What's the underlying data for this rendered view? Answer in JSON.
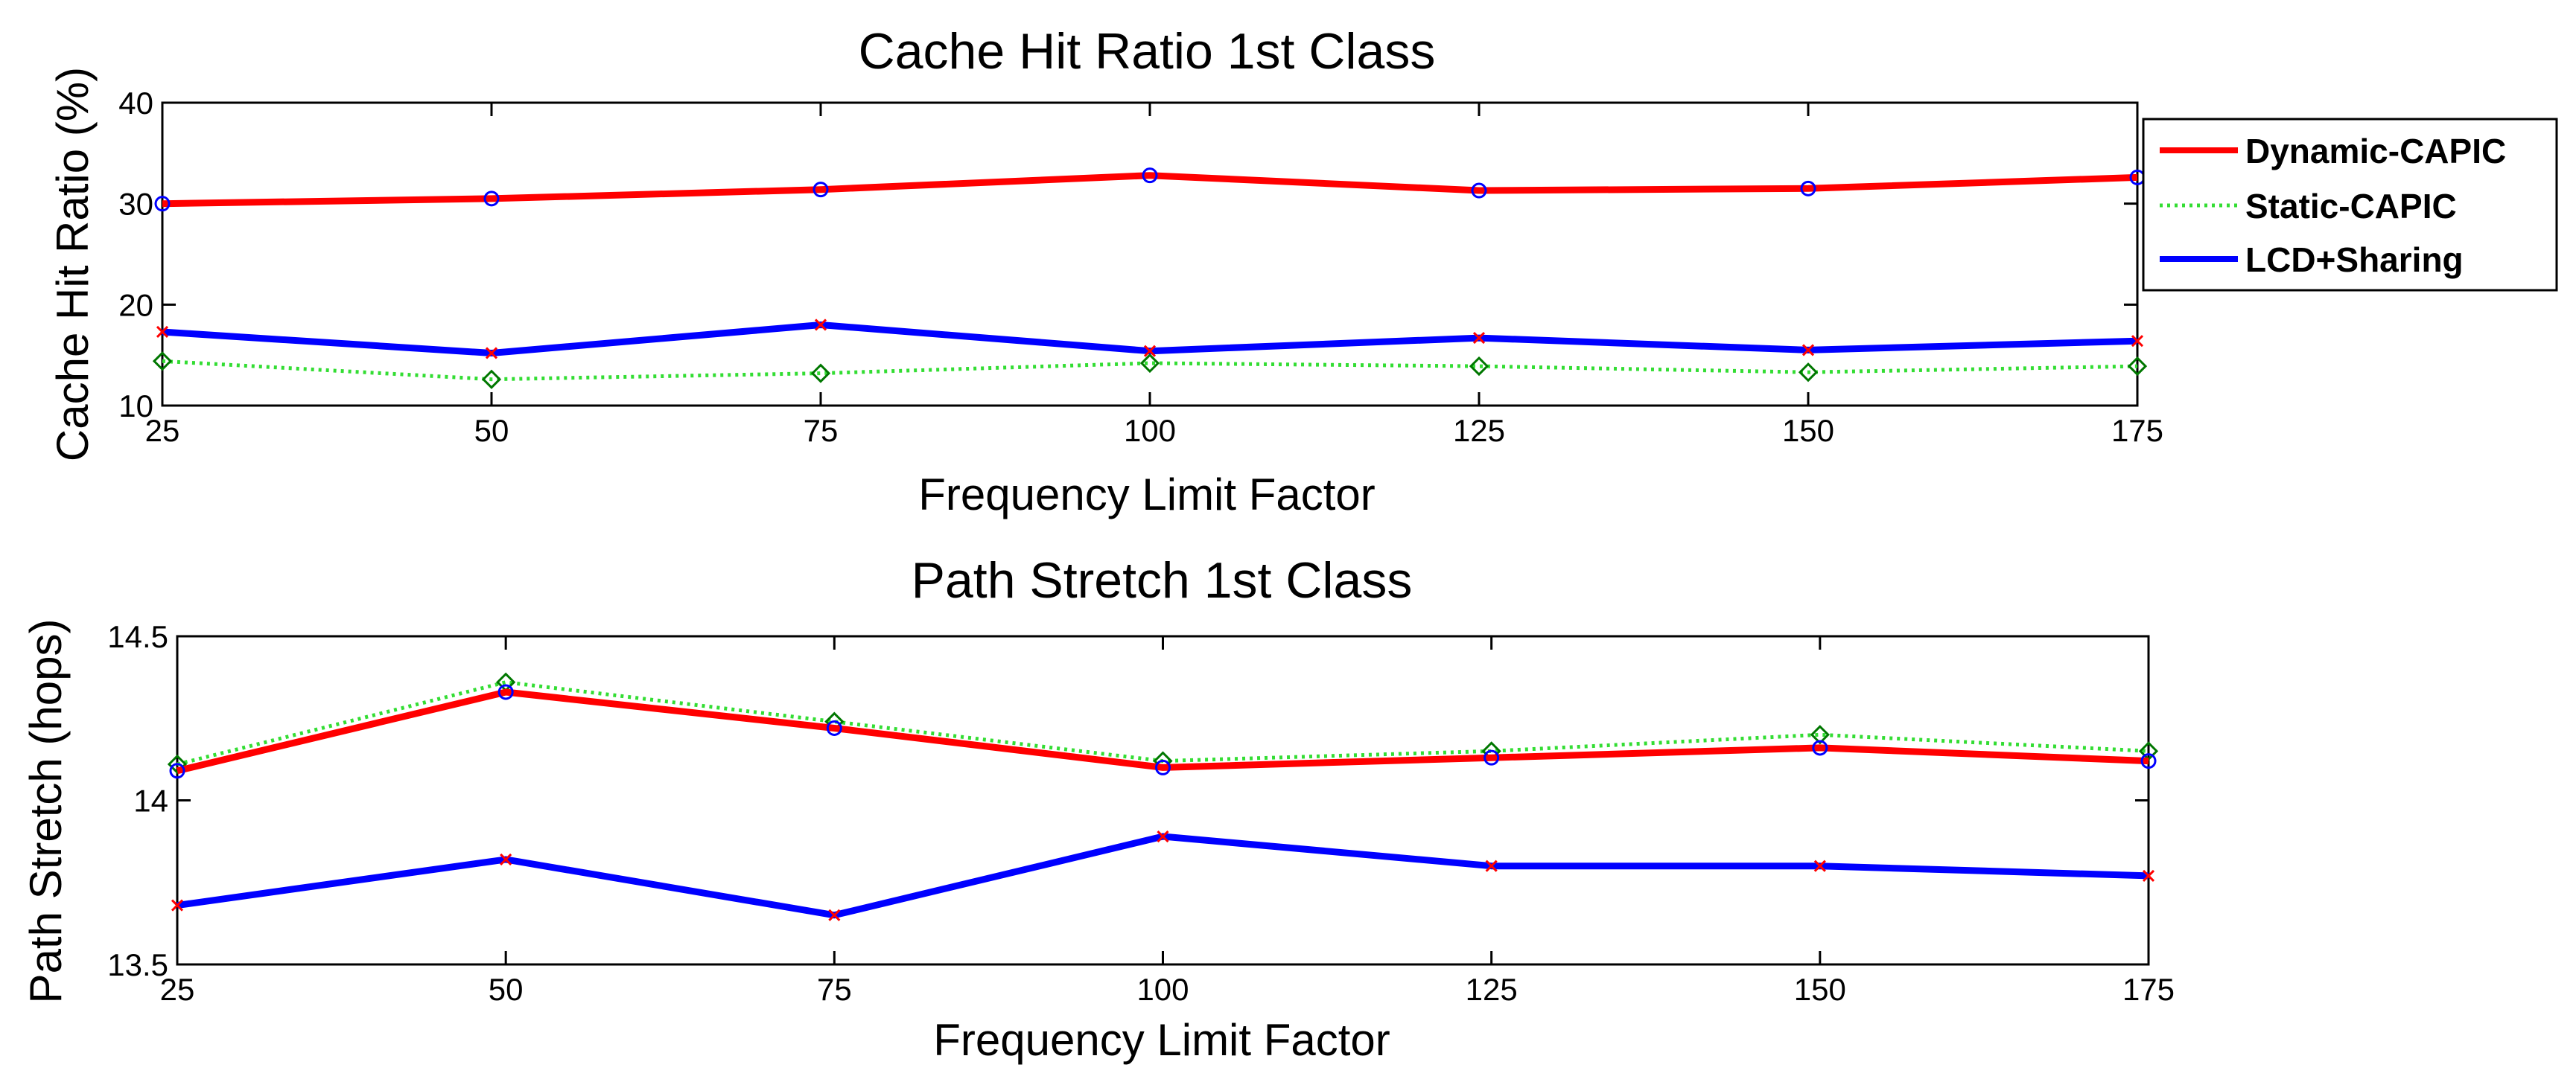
{
  "chart_data": [
    {
      "type": "line",
      "title": "Cache Hit Ratio 1st Class",
      "xlabel": "Frequency Limit Factor",
      "ylabel": "Cache Hit Ratio (%)",
      "x": [
        25,
        50,
        75,
        100,
        125,
        150,
        175
      ],
      "x_ticks": [
        25,
        50,
        75,
        100,
        125,
        150,
        175
      ],
      "xlim": [
        25,
        175
      ],
      "y_ticks": [
        10,
        20,
        30,
        40
      ],
      "ylim": [
        10,
        40
      ],
      "grid": false,
      "legend_position": "outside-right",
      "series": [
        {
          "name": "Dynamic-CAPIC",
          "color": "#ff0000",
          "style": "solid",
          "marker": "circle",
          "marker_color": "#0000ff",
          "values": [
            30.0,
            30.5,
            31.4,
            32.8,
            31.3,
            31.5,
            32.6
          ]
        },
        {
          "name": "Static-CAPIC",
          "color": "#33dd33",
          "style": "dotted",
          "marker": "diamond",
          "marker_color": "#007700",
          "values": [
            14.4,
            12.6,
            13.2,
            14.2,
            13.9,
            13.3,
            13.9
          ]
        },
        {
          "name": "LCD+Sharing",
          "color": "#0000ff",
          "style": "solid",
          "marker": "x",
          "marker_color": "#ff0000",
          "values": [
            17.3,
            15.2,
            18.0,
            15.4,
            16.7,
            15.5,
            16.4
          ]
        }
      ]
    },
    {
      "type": "line",
      "title": "Path Stretch 1st Class",
      "xlabel": "Frequency Limit Factor",
      "ylabel": "Path Stretch (hops)",
      "x": [
        25,
        50,
        75,
        100,
        125,
        150,
        175
      ],
      "x_ticks": [
        25,
        50,
        75,
        100,
        125,
        150,
        175
      ],
      "xlim": [
        25,
        175
      ],
      "y_ticks": [
        13.5,
        14,
        14.5
      ],
      "ylim": [
        13.5,
        14.5
      ],
      "grid": false,
      "series": [
        {
          "name": "Dynamic-CAPIC",
          "color": "#ff0000",
          "style": "solid",
          "marker": "circle",
          "marker_color": "#0000ff",
          "values": [
            14.09,
            14.33,
            14.22,
            14.1,
            14.13,
            14.16,
            14.12
          ]
        },
        {
          "name": "Static-CAPIC",
          "color": "#33dd33",
          "style": "dotted",
          "marker": "diamond",
          "marker_color": "#007700",
          "values": [
            14.11,
            14.36,
            14.24,
            14.12,
            14.15,
            14.2,
            14.15
          ]
        },
        {
          "name": "LCD+Sharing",
          "color": "#0000ff",
          "style": "solid",
          "marker": "x",
          "marker_color": "#ff0000",
          "values": [
            13.68,
            13.82,
            13.65,
            13.89,
            13.8,
            13.8,
            13.77
          ]
        }
      ]
    }
  ]
}
